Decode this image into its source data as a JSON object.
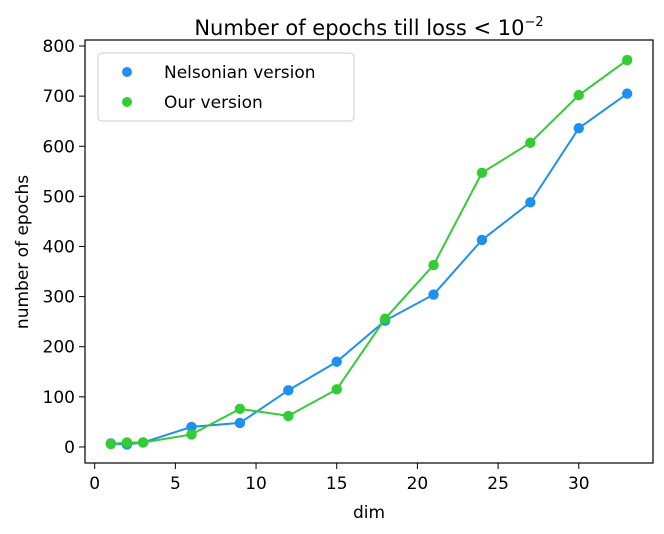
{
  "chart_data": {
    "type": "line",
    "title": "Number of epochs till loss < 10",
    "title_superscript": "−2",
    "xlabel": "dim",
    "ylabel": "number of epochs",
    "xlim": [
      -0.6,
      34.6
    ],
    "ylim": [
      -32,
      812
    ],
    "xticks": [
      0,
      5,
      10,
      15,
      20,
      25,
      30
    ],
    "yticks": [
      0,
      100,
      200,
      300,
      400,
      500,
      600,
      700,
      800
    ],
    "grid": false,
    "legend_position": "top-left",
    "series": [
      {
        "name": "Nelsonian version",
        "color": "#2090f0",
        "x": [
          1,
          2,
          3,
          6,
          9,
          12,
          15,
          18,
          21,
          24,
          27,
          30,
          33
        ],
        "y": [
          7,
          5,
          9,
          40,
          48,
          113,
          170,
          252,
          304,
          413,
          488,
          636,
          705
        ]
      },
      {
        "name": "Our version",
        "color": "#33cc33",
        "x": [
          1,
          2,
          3,
          6,
          9,
          12,
          15,
          18,
          21,
          24,
          27,
          30,
          33
        ],
        "y": [
          6,
          9,
          9,
          25,
          76,
          62,
          115,
          256,
          363,
          547,
          607,
          702,
          772
        ]
      }
    ]
  }
}
